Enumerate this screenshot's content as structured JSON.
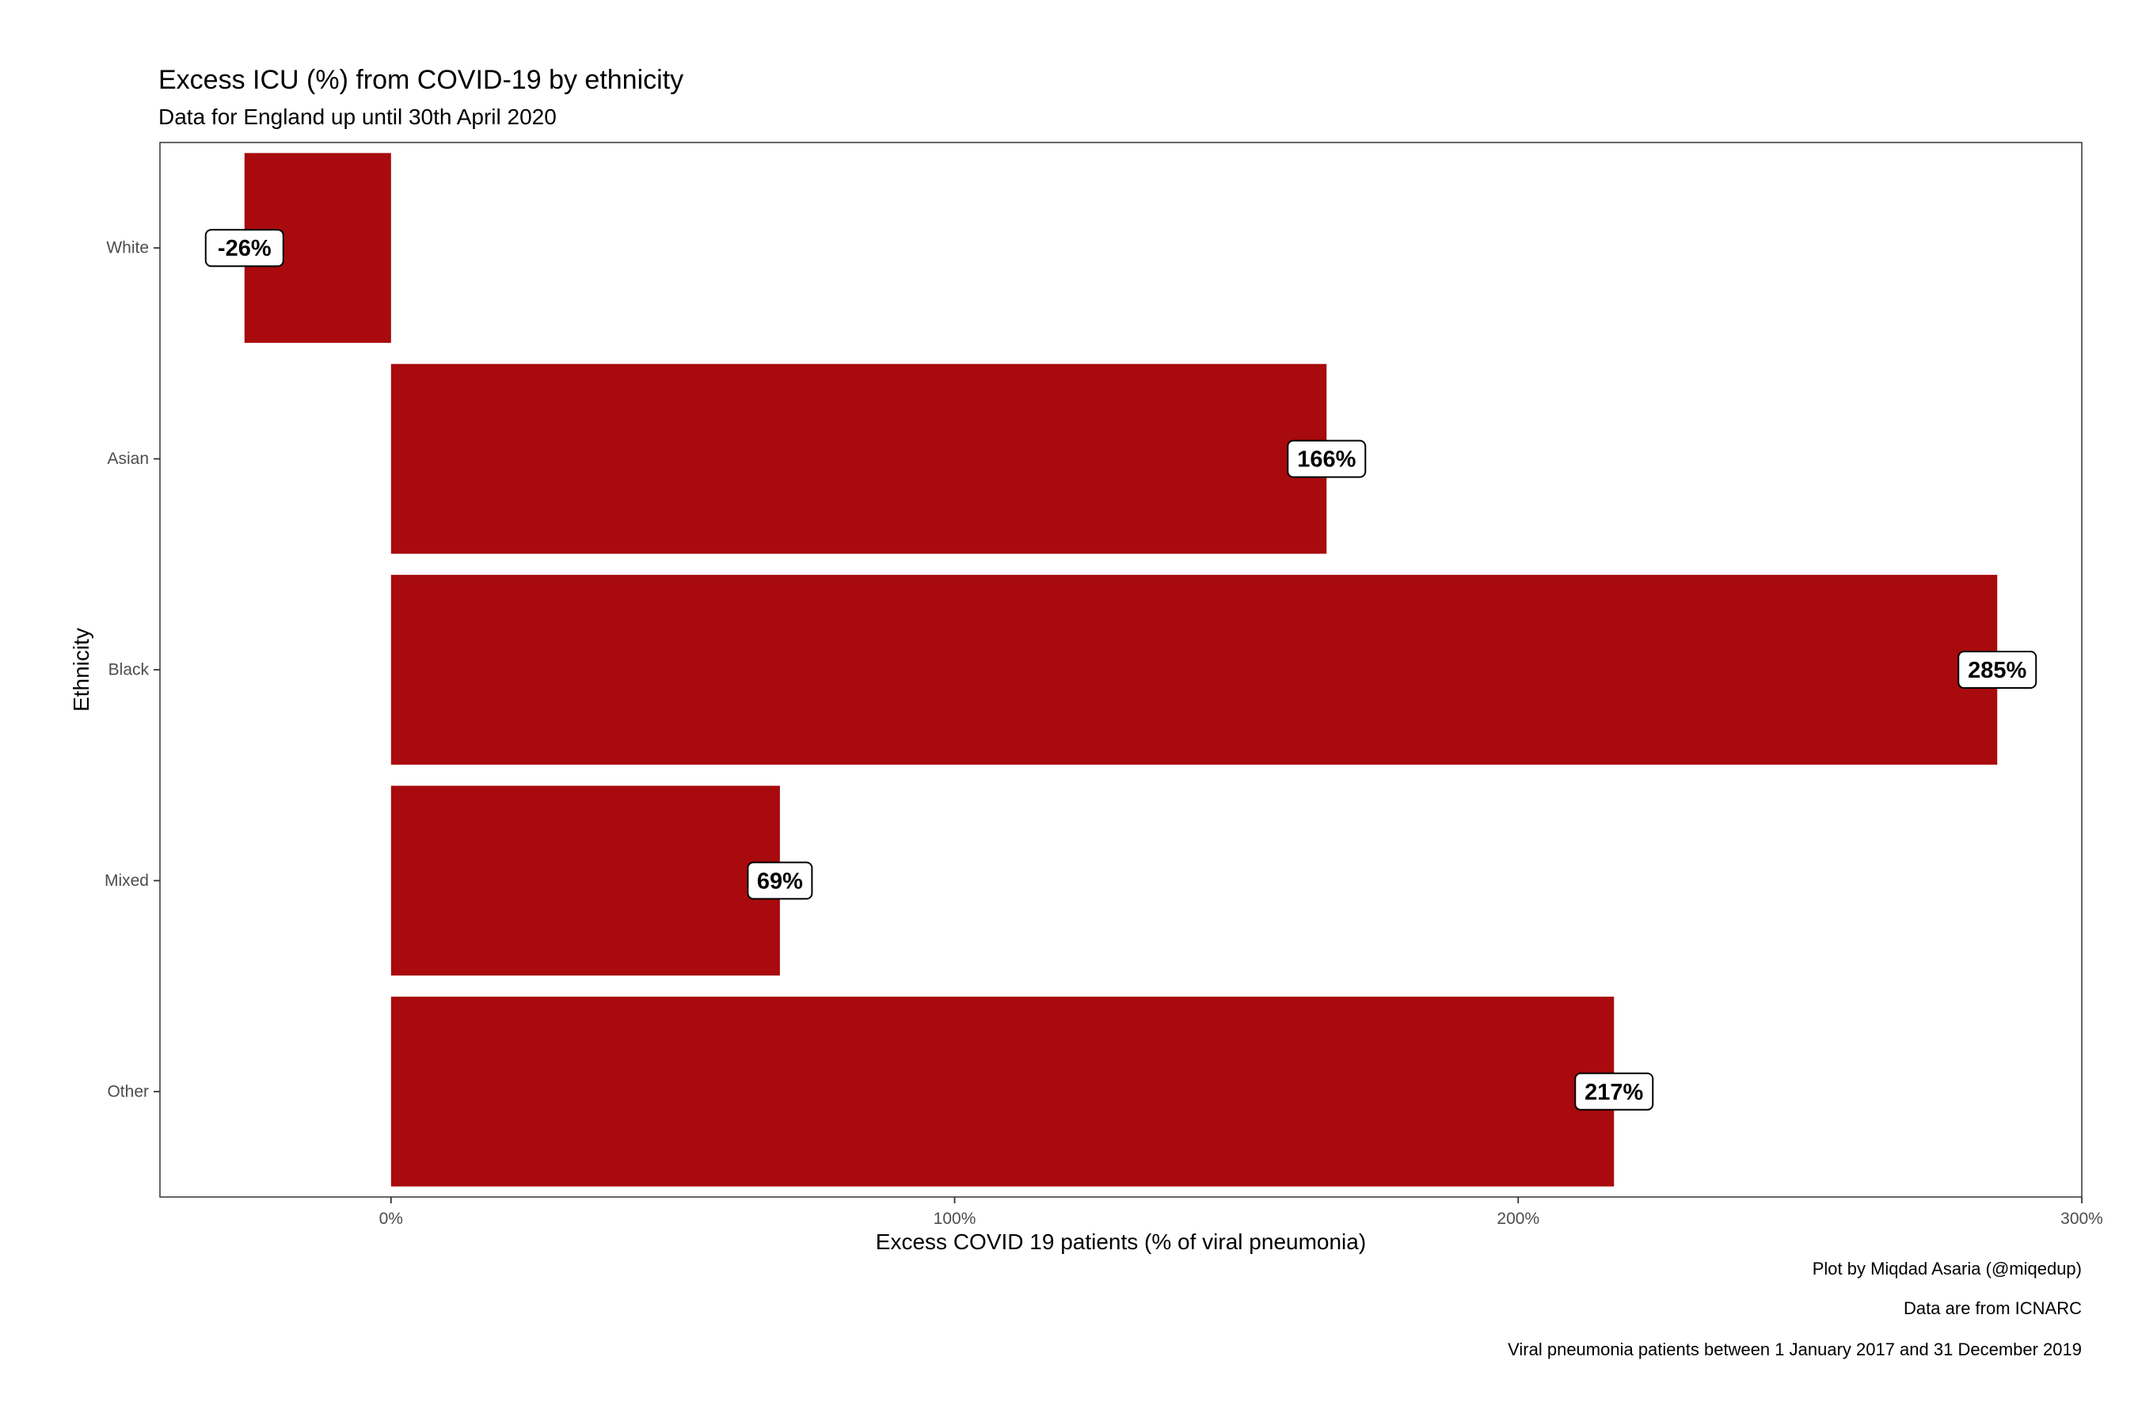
{
  "chart_data": {
    "type": "bar",
    "orientation": "horizontal",
    "title": "Excess ICU (%) from COVID-19 by ethnicity",
    "subtitle": "Data for England up until 30th April 2020",
    "xlabel": "Excess COVID 19 patients (% of viral pneumonia)",
    "ylabel": "Ethnicity",
    "categories": [
      "White",
      "Asian",
      "Black",
      "Mixed",
      "Other"
    ],
    "values": [
      -26,
      166,
      285,
      69,
      217
    ],
    "labels": [
      "-26%",
      "166%",
      "285%",
      "69%",
      "217%"
    ],
    "xlim": [
      -41,
      300
    ],
    "xticks": [
      0,
      100,
      200,
      300
    ],
    "xtick_labels": [
      "0%",
      "100%",
      "200%",
      "300%"
    ],
    "bar_color": "#a80a0d",
    "grid": false,
    "captions": [
      "Plot by Miqdad Asaria (@miqedup)",
      "Data are from ICNARC",
      "Viral pneumonia patients between 1 January 2017 and 31 December 2019"
    ]
  }
}
